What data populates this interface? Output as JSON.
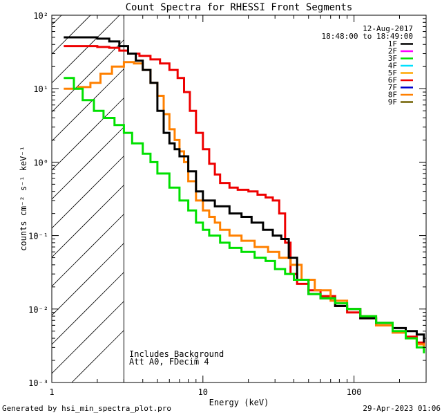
{
  "chart_data": {
    "type": "line",
    "title": "Count Spectra for RHESSI Front Segments",
    "xlabel": "Energy (keV)",
    "ylabel": "counts cm⁻² s⁻¹ keV⁻¹",
    "xscale": "log",
    "yscale": "log",
    "xlim": [
      1,
      300
    ],
    "ylim": [
      0.001,
      100
    ],
    "x_ticks": [
      {
        "value": 1,
        "label": "1"
      },
      {
        "value": 10,
        "label": "10"
      },
      {
        "value": 100,
        "label": "100"
      }
    ],
    "y_ticks": [
      {
        "value": 100,
        "label": "10²"
      },
      {
        "value": 10,
        "label": "10¹"
      },
      {
        "value": 1,
        "label": "10⁰"
      },
      {
        "value": 0.1,
        "label": "10⁻¹"
      },
      {
        "value": 0.01,
        "label": "10⁻²"
      },
      {
        "value": 0.001,
        "label": "10⁻³"
      }
    ],
    "date": "12-Aug-2017",
    "time_range": "18:48:00 to 18:49:00",
    "threshold_energy": 3,
    "annotations": [
      "Includes Background",
      "Att A0, FDecim 4"
    ],
    "legend": [
      {
        "label": "1F",
        "color": "#000000"
      },
      {
        "label": "2F",
        "color": "#ff00ff"
      },
      {
        "label": "3F",
        "color": "#00e000"
      },
      {
        "label": "4F",
        "color": "#00e0ff"
      },
      {
        "label": "5F",
        "color": "#ffa500"
      },
      {
        "label": "6F",
        "color": "#ee0000"
      },
      {
        "label": "7F",
        "color": "#0000cc"
      },
      {
        "label": "8F",
        "color": "#ff8000"
      },
      {
        "label": "9F",
        "color": "#706000"
      }
    ],
    "series": [
      {
        "name": "6F",
        "color": "#ee0000",
        "points": [
          [
            1.2,
            38
          ],
          [
            1.6,
            38
          ],
          [
            2.0,
            37
          ],
          [
            2.4,
            36
          ],
          [
            2.8,
            33
          ],
          [
            3.2,
            30
          ],
          [
            3.8,
            28
          ],
          [
            4.5,
            25
          ],
          [
            5.2,
            22
          ],
          [
            6.0,
            18
          ],
          [
            6.8,
            14
          ],
          [
            7.5,
            9
          ],
          [
            8.2,
            5
          ],
          [
            9.0,
            2.5
          ],
          [
            10,
            1.5
          ],
          [
            11,
            0.95
          ],
          [
            12,
            0.68
          ],
          [
            13,
            0.52
          ],
          [
            15,
            0.45
          ],
          [
            17,
            0.42
          ],
          [
            20,
            0.4
          ],
          [
            23,
            0.36
          ],
          [
            26,
            0.33
          ],
          [
            29,
            0.3
          ],
          [
            32,
            0.2
          ],
          [
            35,
            0.08
          ],
          [
            38,
            0.03
          ],
          [
            42,
            0.022
          ],
          [
            50,
            0.018
          ],
          [
            60,
            0.015
          ],
          [
            75,
            0.011
          ],
          [
            90,
            0.009
          ],
          [
            110,
            0.0075
          ],
          [
            140,
            0.006
          ],
          [
            180,
            0.0048
          ],
          [
            220,
            0.0042
          ],
          [
            260,
            0.0035
          ],
          [
            290,
            0.003
          ]
        ]
      },
      {
        "name": "8F",
        "color": "#ff8000",
        "points": [
          [
            1.2,
            10
          ],
          [
            1.5,
            10.5
          ],
          [
            1.8,
            12
          ],
          [
            2.1,
            16
          ],
          [
            2.5,
            20
          ],
          [
            3.0,
            23
          ],
          [
            3.5,
            22
          ],
          [
            4.0,
            18
          ],
          [
            4.5,
            12
          ],
          [
            5.0,
            8
          ],
          [
            5.5,
            4.5
          ],
          [
            6.0,
            2.8
          ],
          [
            6.5,
            2.0
          ],
          [
            7.0,
            1.4
          ],
          [
            7.5,
            1.0
          ],
          [
            8.0,
            0.55
          ],
          [
            9.0,
            0.3
          ],
          [
            10,
            0.22
          ],
          [
            11,
            0.18
          ],
          [
            12,
            0.15
          ],
          [
            13,
            0.12
          ],
          [
            15,
            0.1
          ],
          [
            18,
            0.085
          ],
          [
            22,
            0.07
          ],
          [
            27,
            0.06
          ],
          [
            32,
            0.05
          ],
          [
            38,
            0.04
          ],
          [
            45,
            0.025
          ],
          [
            55,
            0.018
          ],
          [
            70,
            0.013
          ],
          [
            90,
            0.01
          ],
          [
            110,
            0.008
          ],
          [
            140,
            0.006
          ],
          [
            180,
            0.0048
          ],
          [
            220,
            0.004
          ],
          [
            260,
            0.0033
          ],
          [
            290,
            0.0028
          ]
        ]
      },
      {
        "name": "1F",
        "color": "#000000",
        "points": [
          [
            1.2,
            50
          ],
          [
            1.6,
            50
          ],
          [
            2.0,
            48
          ],
          [
            2.4,
            44
          ],
          [
            2.8,
            38
          ],
          [
            3.2,
            30
          ],
          [
            3.6,
            24
          ],
          [
            4.0,
            18
          ],
          [
            4.5,
            12
          ],
          [
            5.0,
            5
          ],
          [
            5.5,
            2.5
          ],
          [
            6.0,
            1.8
          ],
          [
            6.5,
            1.5
          ],
          [
            7.0,
            1.2
          ],
          [
            8.0,
            0.75
          ],
          [
            9.0,
            0.4
          ],
          [
            10,
            0.3
          ],
          [
            12,
            0.25
          ],
          [
            15,
            0.2
          ],
          [
            18,
            0.18
          ],
          [
            21,
            0.15
          ],
          [
            25,
            0.12
          ],
          [
            29,
            0.1
          ],
          [
            33,
            0.09
          ],
          [
            37,
            0.05
          ],
          [
            42,
            0.025
          ],
          [
            50,
            0.016
          ],
          [
            60,
            0.014
          ],
          [
            75,
            0.011
          ],
          [
            90,
            0.01
          ],
          [
            110,
            0.0075
          ],
          [
            140,
            0.0065
          ],
          [
            180,
            0.0055
          ],
          [
            220,
            0.005
          ],
          [
            260,
            0.0045
          ],
          [
            290,
            0.0035
          ]
        ]
      },
      {
        "name": "3F",
        "color": "#00e000",
        "points": [
          [
            1.2,
            14
          ],
          [
            1.4,
            10
          ],
          [
            1.6,
            7
          ],
          [
            1.9,
            5
          ],
          [
            2.2,
            4
          ],
          [
            2.6,
            3.2
          ],
          [
            3.0,
            2.5
          ],
          [
            3.4,
            1.8
          ],
          [
            4.0,
            1.3
          ],
          [
            4.5,
            1.0
          ],
          [
            5.0,
            0.7
          ],
          [
            6.0,
            0.45
          ],
          [
            7.0,
            0.3
          ],
          [
            8.0,
            0.22
          ],
          [
            9.0,
            0.15
          ],
          [
            10,
            0.12
          ],
          [
            11,
            0.1
          ],
          [
            13,
            0.08
          ],
          [
            15,
            0.068
          ],
          [
            18,
            0.06
          ],
          [
            22,
            0.05
          ],
          [
            26,
            0.045
          ],
          [
            30,
            0.035
          ],
          [
            35,
            0.03
          ],
          [
            40,
            0.025
          ],
          [
            50,
            0.016
          ],
          [
            60,
            0.014
          ],
          [
            75,
            0.012
          ],
          [
            90,
            0.01
          ],
          [
            110,
            0.008
          ],
          [
            140,
            0.0065
          ],
          [
            180,
            0.005
          ],
          [
            220,
            0.004
          ],
          [
            260,
            0.003
          ],
          [
            290,
            0.0025
          ]
        ]
      }
    ]
  },
  "footer": {
    "generated": "Generated by hsi_min_spectra_plot.pro",
    "timestamp": "29-Apr-2023 01:06"
  }
}
